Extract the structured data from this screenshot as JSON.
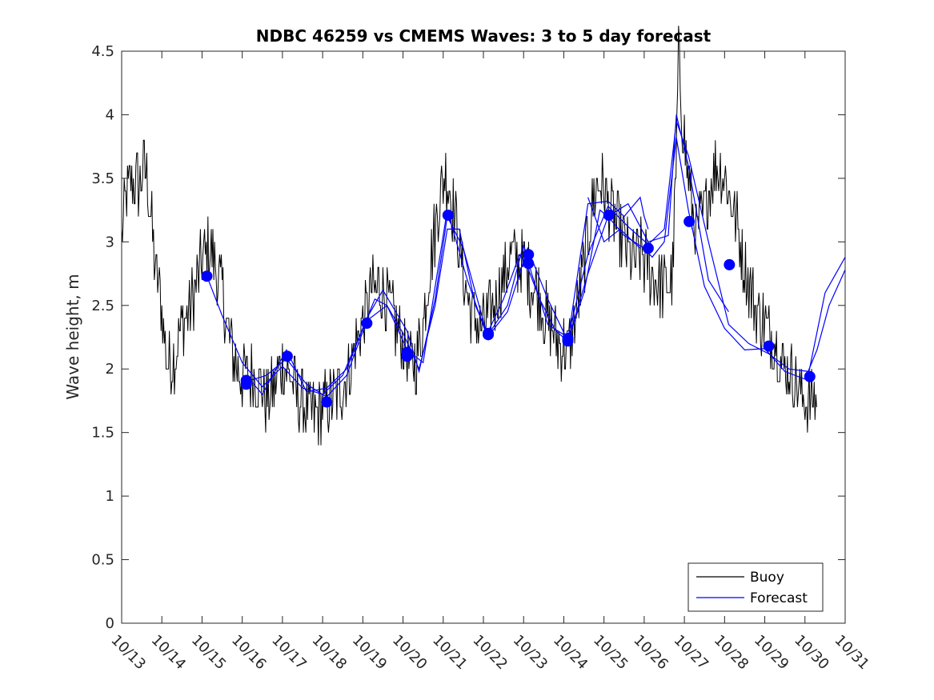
{
  "chart_data": {
    "type": "line",
    "title": "NDBC 46259 vs CMEMS Waves: 3 to 5 day forecast",
    "xlabel": "",
    "ylabel": "Wave height, m",
    "xlim": [
      0,
      18
    ],
    "ylim": [
      0,
      4.5
    ],
    "x_ticks": [
      {
        "value": 0,
        "label": "10/13"
      },
      {
        "value": 1,
        "label": "10/14"
      },
      {
        "value": 2,
        "label": "10/15"
      },
      {
        "value": 3,
        "label": "10/16"
      },
      {
        "value": 4,
        "label": "10/17"
      },
      {
        "value": 5,
        "label": "10/18"
      },
      {
        "value": 6,
        "label": "10/19"
      },
      {
        "value": 7,
        "label": "10/20"
      },
      {
        "value": 8,
        "label": "10/21"
      },
      {
        "value": 9,
        "label": "10/22"
      },
      {
        "value": 10,
        "label": "10/23"
      },
      {
        "value": 11,
        "label": "10/24"
      },
      {
        "value": 12,
        "label": "10/25"
      },
      {
        "value": 13,
        "label": "10/26"
      },
      {
        "value": 14,
        "label": "10/27"
      },
      {
        "value": 15,
        "label": "10/28"
      },
      {
        "value": 16,
        "label": "10/29"
      },
      {
        "value": 17,
        "label": "10/30"
      },
      {
        "value": 18,
        "label": "10/31"
      }
    ],
    "y_ticks": [
      {
        "value": 0,
        "label": "0"
      },
      {
        "value": 0.5,
        "label": "0.5"
      },
      {
        "value": 1,
        "label": "1"
      },
      {
        "value": 1.5,
        "label": "1.5"
      },
      {
        "value": 2,
        "label": "2"
      },
      {
        "value": 2.5,
        "label": "2.5"
      },
      {
        "value": 3,
        "label": "3"
      },
      {
        "value": 3.5,
        "label": "3.5"
      },
      {
        "value": 4,
        "label": "4"
      },
      {
        "value": 4.5,
        "label": "4.5"
      }
    ],
    "legend": {
      "placement": "bottom-right",
      "entries": [
        {
          "label": "Buoy",
          "color": "#000000"
        },
        {
          "label": "Forecast",
          "color": "#0000ff"
        }
      ]
    },
    "buoy_envelope": [
      [
        0.0,
        3.0
      ],
      [
        0.1,
        3.35
      ],
      [
        0.3,
        3.5
      ],
      [
        0.45,
        3.45
      ],
      [
        0.55,
        3.6
      ],
      [
        0.65,
        3.45
      ],
      [
        0.75,
        3.1
      ],
      [
        0.85,
        2.75
      ],
      [
        0.95,
        2.6
      ],
      [
        1.05,
        2.3
      ],
      [
        1.15,
        2.0
      ],
      [
        1.25,
        2.05
      ],
      [
        1.35,
        2.15
      ],
      [
        1.5,
        2.35
      ],
      [
        1.7,
        2.5
      ],
      [
        1.85,
        2.65
      ],
      [
        2.0,
        2.85
      ],
      [
        2.15,
        2.95
      ],
      [
        2.3,
        2.85
      ],
      [
        2.5,
        2.6
      ],
      [
        2.65,
        2.3
      ],
      [
        2.8,
        2.1
      ],
      [
        3.0,
        1.95
      ],
      [
        3.2,
        1.95
      ],
      [
        3.4,
        1.9
      ],
      [
        3.6,
        1.75
      ],
      [
        3.8,
        1.85
      ],
      [
        4.0,
        2.05
      ],
      [
        4.2,
        1.95
      ],
      [
        4.4,
        1.75
      ],
      [
        4.6,
        1.7
      ],
      [
        4.8,
        1.65
      ],
      [
        5.0,
        1.7
      ],
      [
        5.2,
        1.75
      ],
      [
        5.4,
        1.8
      ],
      [
        5.6,
        1.95
      ],
      [
        5.8,
        2.15
      ],
      [
        6.0,
        2.35
      ],
      [
        6.2,
        2.6
      ],
      [
        6.4,
        2.65
      ],
      [
        6.6,
        2.55
      ],
      [
        6.8,
        2.35
      ],
      [
        7.0,
        2.2
      ],
      [
        7.2,
        2.0
      ],
      [
        7.35,
        2.1
      ],
      [
        7.5,
        2.35
      ],
      [
        7.7,
        2.9
      ],
      [
        7.9,
        3.3
      ],
      [
        8.05,
        3.55
      ],
      [
        8.2,
        3.35
      ],
      [
        8.35,
        3.05
      ],
      [
        8.5,
        2.75
      ],
      [
        8.7,
        2.45
      ],
      [
        8.9,
        2.3
      ],
      [
        9.1,
        2.4
      ],
      [
        9.3,
        2.55
      ],
      [
        9.5,
        2.7
      ],
      [
        9.7,
        2.9
      ],
      [
        9.9,
        2.85
      ],
      [
        10.1,
        2.75
      ],
      [
        10.3,
        2.65
      ],
      [
        10.5,
        2.45
      ],
      [
        10.7,
        2.3
      ],
      [
        10.9,
        2.2
      ],
      [
        11.1,
        2.15
      ],
      [
        11.3,
        2.4
      ],
      [
        11.5,
        2.8
      ],
      [
        11.7,
        3.3
      ],
      [
        11.9,
        3.5
      ],
      [
        12.1,
        3.3
      ],
      [
        12.3,
        3.15
      ],
      [
        12.5,
        3.0
      ],
      [
        12.7,
        2.85
      ],
      [
        12.9,
        2.9
      ],
      [
        13.1,
        2.8
      ],
      [
        13.3,
        2.7
      ],
      [
        13.5,
        2.65
      ],
      [
        13.7,
        2.7
      ],
      [
        13.8,
        3.6
      ],
      [
        13.85,
        4.5
      ],
      [
        13.95,
        3.95
      ],
      [
        14.1,
        3.5
      ],
      [
        14.3,
        3.05
      ],
      [
        14.5,
        3.25
      ],
      [
        14.7,
        3.55
      ],
      [
        14.9,
        3.6
      ],
      [
        15.1,
        3.4
      ],
      [
        15.3,
        3.15
      ],
      [
        15.5,
        2.8
      ],
      [
        15.7,
        2.55
      ],
      [
        15.9,
        2.4
      ],
      [
        16.1,
        2.3
      ],
      [
        16.3,
        2.2
      ],
      [
        16.5,
        2.0
      ],
      [
        16.7,
        1.95
      ],
      [
        16.9,
        1.8
      ],
      [
        17.1,
        1.75
      ],
      [
        17.3,
        1.8
      ]
    ],
    "forecast_markers": [
      {
        "x": 2.12,
        "y": 2.73
      },
      {
        "x": 3.1,
        "y": 1.91
      },
      {
        "x": 3.1,
        "y": 1.88
      },
      {
        "x": 4.12,
        "y": 2.1
      },
      {
        "x": 5.1,
        "y": 1.74
      },
      {
        "x": 6.1,
        "y": 2.36
      },
      {
        "x": 7.1,
        "y": 2.13
      },
      {
        "x": 7.1,
        "y": 2.1
      },
      {
        "x": 8.12,
        "y": 3.21
      },
      {
        "x": 9.12,
        "y": 2.28
      },
      {
        "x": 9.12,
        "y": 2.27
      },
      {
        "x": 10.12,
        "y": 2.9
      },
      {
        "x": 10.12,
        "y": 2.83
      },
      {
        "x": 11.1,
        "y": 2.24
      },
      {
        "x": 11.1,
        "y": 2.22
      },
      {
        "x": 12.12,
        "y": 3.21
      },
      {
        "x": 13.1,
        "y": 2.95
      },
      {
        "x": 14.12,
        "y": 3.16
      },
      {
        "x": 15.12,
        "y": 2.82
      },
      {
        "x": 16.1,
        "y": 2.18
      },
      {
        "x": 17.12,
        "y": 1.94
      }
    ],
    "forecast_series": [
      {
        "name": "f1",
        "x": [
          2.12,
          2.5,
          3.0,
          3.5,
          4.0,
          4.5,
          5.0,
          5.5,
          6.0,
          6.3,
          6.6,
          7.0,
          7.4,
          7.8,
          8.1,
          8.4,
          8.8,
          9.1,
          9.5,
          9.9,
          10.1,
          10.4,
          10.8,
          11.1,
          11.5,
          11.9,
          12.1,
          12.5,
          13.0,
          13.2,
          13.5,
          13.8,
          14.1,
          14.5,
          15.0,
          15.5,
          16.0,
          16.5,
          17.0,
          17.3,
          17.6,
          18.0
        ],
        "y": [
          2.73,
          2.42,
          2.05,
          1.86,
          2.02,
          1.85,
          1.8,
          1.95,
          2.32,
          2.55,
          2.5,
          2.28,
          2.0,
          2.5,
          3.1,
          3.1,
          2.5,
          2.28,
          2.55,
          2.9,
          2.8,
          2.55,
          2.3,
          2.22,
          2.6,
          3.25,
          3.2,
          3.05,
          2.95,
          2.88,
          3.0,
          3.82,
          3.25,
          2.65,
          2.32,
          2.15,
          2.16,
          1.98,
          1.92,
          2.15,
          2.5,
          2.78
        ]
      },
      {
        "name": "f2",
        "x": [
          3.1,
          3.5,
          4.1,
          4.6,
          5.1,
          5.6,
          6.1,
          6.5,
          7.1,
          7.4,
          7.8,
          8.1,
          8.5,
          9.1,
          9.6,
          10.0,
          10.2,
          10.6,
          11.1,
          11.6,
          12.1,
          12.6,
          13.1,
          13.5,
          13.8,
          14.1,
          14.6,
          15.1,
          15.6,
          16.1,
          16.6,
          17.1,
          17.5,
          18.0
        ],
        "y": [
          1.95,
          1.8,
          2.15,
          1.82,
          1.85,
          2.0,
          2.4,
          2.62,
          2.3,
          1.98,
          2.55,
          3.2,
          2.95,
          2.26,
          2.5,
          2.98,
          2.75,
          2.35,
          2.25,
          2.9,
          3.28,
          3.12,
          2.98,
          3.1,
          3.95,
          3.68,
          3.0,
          2.35,
          2.2,
          2.12,
          2.0,
          1.98,
          2.6,
          2.88
        ]
      },
      {
        "name": "f3",
        "x": [
          3.1,
          3.6,
          4.1,
          4.6,
          5.1,
          5.6,
          6.1,
          6.6,
          7.1,
          7.5,
          8.1,
          8.6,
          9.1,
          9.6,
          10.1,
          10.6,
          11.1,
          11.6,
          12.1,
          12.6,
          13.1,
          13.6,
          13.8,
          14.1,
          14.6,
          15.1
        ],
        "y": [
          1.9,
          1.95,
          2.08,
          1.88,
          1.78,
          1.95,
          2.38,
          2.5,
          2.15,
          2.05,
          3.25,
          2.7,
          2.25,
          2.45,
          2.95,
          2.55,
          2.22,
          2.75,
          3.2,
          3.3,
          3.0,
          3.05,
          4.0,
          3.6,
          2.7,
          2.45
        ]
      },
      {
        "name": "f4",
        "x": [
          11.1,
          11.6,
          12.1,
          12.5,
          12.9,
          13.0,
          13.1
        ],
        "y": [
          2.22,
          3.3,
          3.32,
          3.2,
          3.35,
          3.2,
          3.1
        ]
      },
      {
        "name": "f5",
        "x": [
          11.6,
          12.0,
          12.4,
          12.9
        ],
        "y": [
          3.35,
          3.0,
          3.1,
          2.95
        ]
      }
    ]
  }
}
